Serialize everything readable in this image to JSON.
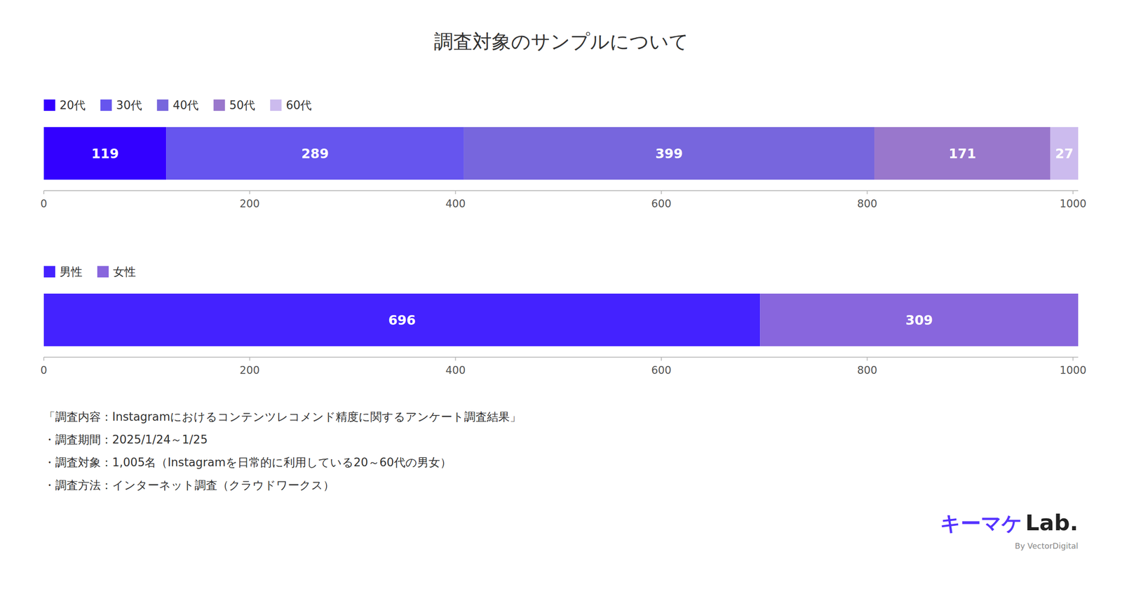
{
  "title": "調査対象のサンプルについて",
  "footer": [
    "「調査内容：Instagramにおけるコンテンツレコメンド精度に関するアンケート調査結果」",
    "・調査期間：2025/1/24～1/25",
    "・調査対象：1,005名（Instagramを日常的に利用している20～60代の男女）",
    "・調査方法：インターネット調査（クラウドワークス）"
  ],
  "credits": [
    "キーマケ",
    "Lab.",
    "By VectorDigital"
  ],
  "chart_data": [
    {
      "type": "bar",
      "orientation": "horizontal",
      "stacked": true,
      "data_labels": true,
      "legend": "top",
      "grid": false,
      "tick_labels": "x",
      "categories": [
        null
      ],
      "series": [
        {
          "name": "20代",
          "color": "#3300ff",
          "values": [
            119
          ]
        },
        {
          "name": "30代",
          "color": "#6655ee",
          "values": [
            289
          ]
        },
        {
          "name": "40代",
          "color": "#7766dd",
          "values": [
            399
          ]
        },
        {
          "name": "50代",
          "color": "#9977cc",
          "values": [
            171
          ]
        },
        {
          "name": "60代",
          "color": "#ccbbee",
          "values": [
            27
          ]
        }
      ],
      "xlim": [
        0,
        1005
      ],
      "xticks": [
        0,
        200,
        400,
        600,
        800,
        1000
      ]
    },
    {
      "type": "bar",
      "orientation": "horizontal",
      "stacked": true,
      "data_labels": true,
      "legend": "top",
      "grid": false,
      "tick_labels": "x",
      "categories": [
        null
      ],
      "series": [
        {
          "name": "男性",
          "color": "#4422ff",
          "values": [
            696
          ]
        },
        {
          "name": "女性",
          "color": "#8866dd",
          "values": [
            309
          ]
        }
      ],
      "xlim": [
        0,
        1005
      ],
      "xticks": [
        0,
        200,
        400,
        600,
        800,
        1000
      ]
    }
  ]
}
